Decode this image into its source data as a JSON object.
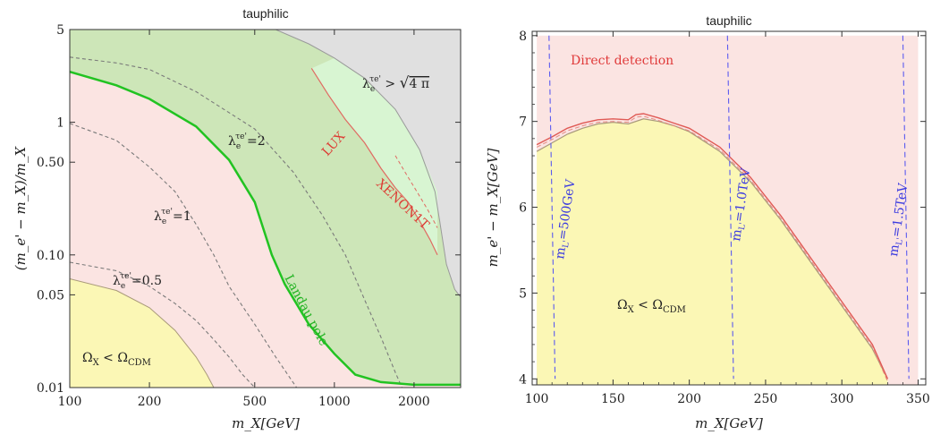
{
  "chart_data": [
    {
      "type": "area",
      "title": "tauphilic",
      "xlabel": "m_X [GeV]",
      "ylabel": "(m_e' − m_X)/m_X",
      "x_scale": "log",
      "y_scale": "log",
      "xlim": [
        100,
        3000
      ],
      "ylim": [
        0.01,
        5
      ],
      "x_ticks": [
        100,
        200,
        500,
        1000,
        2000
      ],
      "x_tick_labels": [
        "100",
        "200",
        "500",
        "1000",
        "2000"
      ],
      "y_ticks": [
        0.01,
        0.05,
        0.1,
        0.5,
        1,
        5
      ],
      "y_tick_labels": [
        "0.01",
        "0.05",
        "0.10",
        "0.50",
        "1",
        "5"
      ],
      "colors": {
        "perturbative": "#e0e0e0",
        "landau": "#cde6b8",
        "relic": "#fbe4e2",
        "under": "#fbf7b5",
        "xenon": "#d8f5d2",
        "lux_line": "#e06a62",
        "green_line": "#22c322",
        "dashed": "#7a7a7a"
      },
      "regions": [
        {
          "name": "perturbativity",
          "label": "λ_e^{τe'} > √(4π)",
          "boundary": {
            "x": [
              600,
              800,
              1000,
              1300,
              1700,
              2100,
              2400,
              2500,
              2650,
              2850,
              3000
            ],
            "y": [
              5,
              3.9,
              3.05,
              2.15,
              1.25,
              0.62,
              0.3,
              0.18,
              0.085,
              0.055,
              0.048
            ]
          }
        },
        {
          "name": "landau-pole",
          "label": "Landau pole",
          "boundary": {
            "x": [
              100,
              150,
              200,
              300,
              400,
              500,
              580,
              650,
              800,
              1000,
              1200,
              1500,
              2000,
              3000
            ],
            "y": [
              2.4,
              1.9,
              1.5,
              0.93,
              0.52,
              0.25,
              0.1,
              0.06,
              0.03,
              0.018,
              0.0125,
              0.011,
              0.0105,
              0.0105
            ]
          }
        },
        {
          "name": "underabundant",
          "label": "Ω_X < Ω_CDM",
          "boundary": {
            "x": [
              100,
              150,
              200,
              250,
              300,
              330,
              350
            ],
            "y": [
              0.066,
              0.054,
              0.04,
              0.027,
              0.017,
              0.0125,
              0.01
            ]
          }
        }
      ],
      "series": [
        {
          "label": "λ_e^{τe'} = 2",
          "x": [
            100,
            150,
            200,
            300,
            500,
            700,
            900,
            1100,
            1300,
            1500,
            1700,
            1800
          ],
          "y": [
            3.1,
            2.8,
            2.5,
            1.7,
            0.89,
            0.42,
            0.2,
            0.1,
            0.046,
            0.024,
            0.013,
            0.01
          ]
        },
        {
          "label": "λ_e^{τe'} = 1",
          "x": [
            100,
            150,
            200,
            250,
            300,
            350,
            400,
            500,
            600,
            720
          ],
          "y": [
            0.98,
            0.73,
            0.46,
            0.3,
            0.17,
            0.1,
            0.058,
            0.03,
            0.017,
            0.01
          ]
        },
        {
          "label": "λ_e^{τe'} = 0.5",
          "x": [
            100,
            150,
            200,
            250,
            300,
            350,
            400,
            450,
            500
          ],
          "y": [
            0.088,
            0.076,
            0.058,
            0.043,
            0.032,
            0.023,
            0.017,
            0.0125,
            0.01
          ]
        },
        {
          "label": "LUX",
          "x": [
            820,
            950,
            1100,
            1300,
            1500,
            1700,
            1900,
            2100,
            2300,
            2450
          ],
          "y": [
            2.55,
            1.6,
            1.05,
            0.7,
            0.45,
            0.32,
            0.25,
            0.18,
            0.13,
            0.1
          ]
        },
        {
          "label": "XENON1T",
          "x": [
            1700,
            1850,
            2050,
            2250,
            2450
          ],
          "y": [
            0.56,
            0.42,
            0.3,
            0.22,
            0.16
          ]
        }
      ]
    },
    {
      "type": "area",
      "title": "tauphilic",
      "xlabel": "m_X [GeV]",
      "ylabel": "m_e' − m_X [GeV]",
      "xlim": [
        97,
        355
      ],
      "ylim": [
        3.93,
        8.05
      ],
      "x_ticks": [
        100,
        150,
        200,
        250,
        300,
        350
      ],
      "y_ticks": [
        4,
        5,
        6,
        7,
        8
      ],
      "regions": [
        {
          "name": "direct-detection",
          "label": "Direct detection",
          "boundary": {
            "x": [
              100,
              350
            ],
            "y": [
              8,
              8
            ]
          }
        },
        {
          "name": "underabundant",
          "label": "Ω_X < Ω_CDM",
          "boundary": {
            "x": [
              100,
              110,
              120,
              130,
              140,
              150,
              160,
              170,
              180,
              190,
              200,
              220,
              240,
              260,
              280,
              300,
              320,
              330
            ],
            "y": [
              6.65,
              6.75,
              6.85,
              6.92,
              6.97,
              6.99,
              6.97,
              7.03,
              7.0,
              6.95,
              6.88,
              6.65,
              6.3,
              5.85,
              5.35,
              4.85,
              4.35,
              4.0
            ]
          }
        }
      ],
      "series": [
        {
          "label": "direct-detection boundary",
          "x": [
            100,
            110,
            120,
            130,
            140,
            150,
            160,
            165,
            170,
            180,
            190,
            200,
            220,
            240,
            260,
            280,
            300,
            320,
            330
          ],
          "y": [
            6.73,
            6.82,
            6.92,
            6.98,
            7.02,
            7.03,
            7.02,
            7.08,
            7.09,
            7.04,
            6.98,
            6.92,
            6.7,
            6.35,
            5.9,
            5.4,
            4.9,
            4.4,
            4.0
          ]
        },
        {
          "label": "m_L' = 500GeV",
          "x": [
            108,
            112
          ],
          "y": [
            8,
            4
          ]
        },
        {
          "label": "m_L' = 1.0TeV",
          "x": [
            225,
            229
          ],
          "y": [
            8,
            4
          ]
        },
        {
          "label": "m_L' = 1.5TeV",
          "x": [
            340,
            344
          ],
          "y": [
            8,
            4
          ]
        }
      ]
    }
  ],
  "texts": {
    "left_title": "tauphilic",
    "right_title": "tauphilic",
    "left_ylabel": "(m_e' − m_X)/m_X",
    "left_xlabel": "m_X[GeV]",
    "right_ylabel": "m_e' − m_X[GeV]",
    "right_xlabel": "m_X[GeV]",
    "pert_label_lhs": "λ",
    "pert_label_gt": " > ",
    "pert_label_rhs": "4 π",
    "lam2": "=2",
    "lam1": "=1",
    "lam05": "=0.5",
    "lam_sym": "λ",
    "lam_sub": "e",
    "lam_sup": "τe'",
    "landau": "Landau pole",
    "lux": "LUX",
    "xenon": "XENON1T",
    "omega_left": "Ω",
    "omega_right": "Ω",
    "omega_sub_x": "X",
    "omega_lt": " < ",
    "omega_sub_cdm": "CDM",
    "direct": "Direct detection",
    "mL1": "=500GeV",
    "mL2": "=1.0TeV",
    "mL3": "=1.5TeV",
    "mL_sym": "m",
    "mL_sub": "L'"
  }
}
